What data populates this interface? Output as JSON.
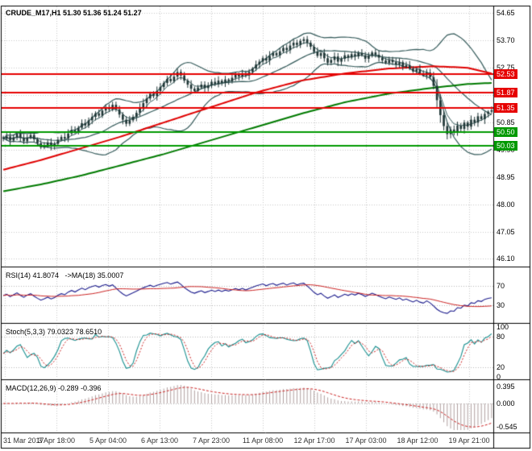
{
  "window": {
    "background": "#ffffff",
    "frame_color": "#000000"
  },
  "chart_data": {
    "type": "candlestick+indicators",
    "symbol_label": "CRUDE_M17,H1 51.30 51.36 51.24 51.27",
    "x_ticks": [
      "31 Mar 2017",
      "3 Apr 18:00",
      "5 Apr 04:00",
      "6 Apr 13:00",
      "7 Apr 23:00",
      "11 Apr 08:00",
      "12 Apr 17:00",
      "17 Apr 03:00",
      "18 Apr 12:00",
      "19 Apr 21:00"
    ],
    "price_axis_ticks": [
      54.65,
      53.7,
      52.75,
      51.8,
      50.85,
      49.9,
      48.95,
      48.0,
      47.05,
      46.1
    ],
    "price_range": [
      45.86,
      54.88
    ],
    "grid": true,
    "hlines": [
      {
        "price": 52.53,
        "color": "#e60000",
        "label": "52.53"
      },
      {
        "price": 51.87,
        "color": "#e60000",
        "label": "51.87"
      },
      {
        "price": 51.35,
        "color": "#e60000",
        "label": "51.35"
      },
      {
        "price": 50.5,
        "color": "#009900",
        "label": "50.50"
      },
      {
        "price": 50.03,
        "color": "#009900",
        "label": "50.03"
      }
    ],
    "closes": [
      50.28,
      50.36,
      50.22,
      50.33,
      50.45,
      50.31,
      50.19,
      50.32,
      50.41,
      50.26,
      50.12,
      49.98,
      50.06,
      50.15,
      50.02,
      50.1,
      50.24,
      50.34,
      50.28,
      50.46,
      50.58,
      50.5,
      50.66,
      50.82,
      50.74,
      50.92,
      51.04,
      51.16,
      51.08,
      51.26,
      51.38,
      51.3,
      51.46,
      51.3,
      51.12,
      50.94,
      50.8,
      50.92,
      51.04,
      51.18,
      51.36,
      51.52,
      51.68,
      51.84,
      51.76,
      51.94,
      52.08,
      52.22,
      52.36,
      52.28,
      52.44,
      52.6,
      52.48,
      52.3,
      52.16,
      52.02,
      51.94,
      52.06,
      52.16,
      52.04,
      52.14,
      52.26,
      52.18,
      52.3,
      52.22,
      52.34,
      52.28,
      52.4,
      52.5,
      52.44,
      52.56,
      52.48,
      52.6,
      52.72,
      52.86,
      52.96,
      53.08,
      53.0,
      53.16,
      53.26,
      53.18,
      53.32,
      53.44,
      53.36,
      53.52,
      53.62,
      53.54,
      53.68,
      53.74,
      53.62,
      53.48,
      53.3,
      53.16,
      53.26,
      53.08,
      52.92,
      53.02,
      53.14,
      52.96,
      53.06,
      53.18,
      53.1,
      53.22,
      53.14,
      53.26,
      53.18,
      53.06,
      53.16,
      53.28,
      53.2,
      53.1,
      53.0,
      52.92,
      53.02,
      52.94,
      52.86,
      52.94,
      52.78,
      52.84,
      52.72,
      52.62,
      52.7,
      52.56,
      52.48,
      52.58,
      52.42,
      52.12,
      51.62,
      51.1,
      50.72,
      50.44,
      50.6,
      50.5,
      50.74,
      50.62,
      50.84,
      50.7,
      50.94,
      50.84,
      51.06,
      50.96,
      51.14,
      51.22,
      51.27
    ],
    "red_ma_anchors": [
      [
        0,
        49.2
      ],
      [
        0.08,
        49.55
      ],
      [
        0.16,
        49.95
      ],
      [
        0.24,
        50.35
      ],
      [
        0.33,
        50.85
      ],
      [
        0.42,
        51.35
      ],
      [
        0.52,
        51.9
      ],
      [
        0.61,
        52.3
      ],
      [
        0.7,
        52.55
      ],
      [
        0.79,
        52.72
      ],
      [
        0.88,
        52.8
      ],
      [
        0.95,
        52.75
      ],
      [
        1,
        52.55
      ]
    ],
    "green_ma_anchors": [
      [
        0,
        48.45
      ],
      [
        0.08,
        48.7
      ],
      [
        0.16,
        49.0
      ],
      [
        0.24,
        49.35
      ],
      [
        0.33,
        49.75
      ],
      [
        0.42,
        50.2
      ],
      [
        0.52,
        50.7
      ],
      [
        0.61,
        51.15
      ],
      [
        0.7,
        51.55
      ],
      [
        0.79,
        51.85
      ],
      [
        0.88,
        52.05
      ],
      [
        0.95,
        52.18
      ],
      [
        1,
        52.22
      ]
    ],
    "panels": {
      "rsi": {
        "label": "RSI(14) 41.8074   ->MA(18) 35.0007",
        "levels": [
          70,
          30
        ],
        "axis_ticks": [
          70,
          30
        ],
        "range": [
          0,
          100
        ]
      },
      "stoch": {
        "label": "Stoch(5,3,3) 79.0323 78.6510",
        "levels": [
          80,
          20
        ],
        "axis_ticks": [
          100,
          80,
          20,
          0
        ],
        "range": [
          0,
          100
        ]
      },
      "macd": {
        "label": "MACD(12,26,9) -0.289 -0.396",
        "axis_ticks": [
          "0.395",
          "0.000",
          "-0.545"
        ],
        "range": [
          -0.62,
          0.47
        ]
      }
    }
  },
  "colors": {
    "grid": "#c8c8c8",
    "level_dots": "#b8b8b8",
    "candle": "#1e3535",
    "bollinger": "#355b5b",
    "ma_red": "#e00000",
    "ma_green": "#007a00",
    "rsi_main": "#1a1a8c",
    "rsi_signal": "#cc2222",
    "stoch_main": "#178f8f",
    "stoch_signal": "#cc2222",
    "macd_hist": "#b0a0a0",
    "macd_signal": "#cc2222",
    "axis_text": "#000000",
    "time_text": "#333333",
    "tag_text": "#ffffff"
  }
}
